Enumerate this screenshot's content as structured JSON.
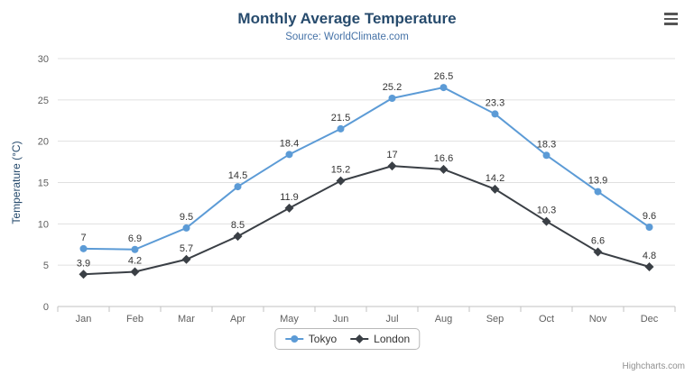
{
  "chart": {
    "title": "Monthly Average Temperature",
    "subtitle": "Source: WorldClimate.com",
    "credits": "Highcharts.com"
  },
  "icons": {
    "context_menu": "hamburger",
    "tokyo_marker": "circle",
    "london_marker": "diamond"
  },
  "chart_data": {
    "type": "line",
    "title": "Monthly Average Temperature",
    "subtitle": "Source: WorldClimate.com",
    "categories": [
      "Jan",
      "Feb",
      "Mar",
      "Apr",
      "May",
      "Jun",
      "Jul",
      "Aug",
      "Sep",
      "Oct",
      "Nov",
      "Dec"
    ],
    "series": [
      {
        "name": "Tokyo",
        "color": "#5c9bd6",
        "marker": "circle",
        "values": [
          7,
          6.9,
          9.5,
          14.5,
          18.4,
          21.5,
          25.2,
          26.5,
          23.3,
          18.3,
          13.9,
          9.6
        ]
      },
      {
        "name": "London",
        "color": "#3a3f45",
        "marker": "diamond",
        "values": [
          3.9,
          4.2,
          5.7,
          8.5,
          11.9,
          15.2,
          17,
          16.6,
          14.2,
          10.3,
          6.6,
          4.8
        ]
      }
    ],
    "xlabel": "",
    "ylabel": "Temperature (°C)",
    "ylim": [
      0,
      30
    ],
    "ytick_interval": 5,
    "grid": true,
    "legend_position": "bottom",
    "data_labels": true,
    "colors": {
      "title": "#274b6d",
      "subtitle": "#4572a7",
      "axis_label": "#606060",
      "data_label": "#333333",
      "gridline": "#e0e0e0",
      "axis_line": "#c0c0c0"
    }
  }
}
